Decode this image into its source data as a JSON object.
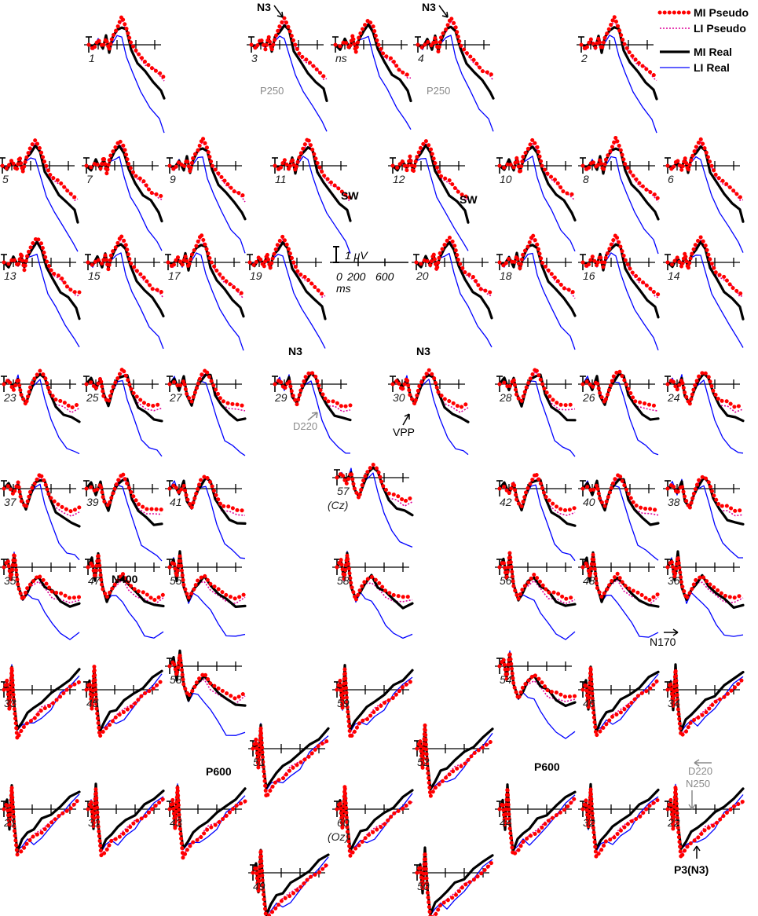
{
  "chart_data": {
    "type": "line",
    "series": [
      {
        "name": "MI Pseudo",
        "color": "#ff0000",
        "style": "dotted-heavy"
      },
      {
        "name": "LI Pseudo",
        "color": "#dd0099",
        "style": "dotted-thin"
      },
      {
        "name": "MI Real",
        "color": "#000000",
        "style": "solid-thick"
      },
      {
        "name": "LI Real",
        "color": "#0000ff",
        "style": "solid-thin"
      }
    ],
    "legend_placement": "top-right",
    "scale_bar": {
      "amplitude": "1 μV",
      "ticks": [
        "0",
        "200",
        "600"
      ],
      "unit": "ms"
    },
    "channels": [
      {
        "label": "1",
        "shape": "front"
      },
      {
        "label": "3",
        "shape": "front"
      },
      {
        "label": "ns",
        "shape": "front"
      },
      {
        "label": "4",
        "shape": "front"
      },
      {
        "label": "2",
        "shape": "front"
      },
      {
        "label": "5",
        "shape": "front"
      },
      {
        "label": "7",
        "shape": "front"
      },
      {
        "label": "9",
        "shape": "front"
      },
      {
        "label": "11",
        "shape": "front"
      },
      {
        "label": "12",
        "shape": "front"
      },
      {
        "label": "10",
        "shape": "front"
      },
      {
        "label": "8",
        "shape": "front"
      },
      {
        "label": "6",
        "shape": "front"
      },
      {
        "label": "13",
        "shape": "front"
      },
      {
        "label": "15",
        "shape": "front"
      },
      {
        "label": "17",
        "shape": "front"
      },
      {
        "label": "19",
        "shape": "front"
      },
      {
        "label": "20",
        "shape": "front"
      },
      {
        "label": "18",
        "shape": "front"
      },
      {
        "label": "16",
        "shape": "front"
      },
      {
        "label": "14",
        "shape": "front"
      },
      {
        "label": "23",
        "shape": "central"
      },
      {
        "label": "25",
        "shape": "central"
      },
      {
        "label": "27",
        "shape": "central"
      },
      {
        "label": "29",
        "shape": "central"
      },
      {
        "label": "30",
        "shape": "central"
      },
      {
        "label": "28",
        "shape": "central"
      },
      {
        "label": "26",
        "shape": "central"
      },
      {
        "label": "24",
        "shape": "central"
      },
      {
        "label": "37",
        "shape": "central"
      },
      {
        "label": "39",
        "shape": "central"
      },
      {
        "label": "41",
        "shape": "central"
      },
      {
        "label": "57",
        "sublabel": "(Cz)",
        "shape": "central"
      },
      {
        "label": "42",
        "shape": "central"
      },
      {
        "label": "40",
        "shape": "central"
      },
      {
        "label": "38",
        "shape": "central"
      },
      {
        "label": "35",
        "shape": "parietal"
      },
      {
        "label": "47",
        "shape": "parietal"
      },
      {
        "label": "55",
        "shape": "parietal"
      },
      {
        "label": "58",
        "shape": "parietal"
      },
      {
        "label": "56",
        "shape": "parietal"
      },
      {
        "label": "48",
        "shape": "parietal"
      },
      {
        "label": "36",
        "shape": "parietal"
      },
      {
        "label": "33",
        "shape": "occipital"
      },
      {
        "label": "45",
        "shape": "occipital"
      },
      {
        "label": "53",
        "shape": "parietal"
      },
      {
        "label": "59",
        "shape": "occipital"
      },
      {
        "label": "54",
        "shape": "parietal"
      },
      {
        "label": "46",
        "shape": "occipital"
      },
      {
        "label": "34",
        "shape": "occipital"
      },
      {
        "label": "51",
        "shape": "occipital"
      },
      {
        "label": "52",
        "shape": "occipital"
      },
      {
        "label": "21",
        "shape": "occipital"
      },
      {
        "label": "31",
        "shape": "occipital"
      },
      {
        "label": "43",
        "shape": "occipital"
      },
      {
        "label": "60",
        "sublabel": "(Oz)",
        "shape": "occipital"
      },
      {
        "label": "44",
        "shape": "occipital"
      },
      {
        "label": "32",
        "shape": "occipital"
      },
      {
        "label": "22",
        "shape": "occipital"
      },
      {
        "label": "49",
        "shape": "occipital"
      },
      {
        "label": "50",
        "shape": "occipital"
      }
    ],
    "annotations": [
      {
        "text": "N3",
        "style": "bold"
      },
      {
        "text": "N3",
        "style": "bold"
      },
      {
        "text": "P250",
        "style": "gray"
      },
      {
        "text": "P250",
        "style": "gray"
      },
      {
        "text": "SW",
        "style": "bold"
      },
      {
        "text": "SW",
        "style": "bold"
      },
      {
        "text": "N3",
        "style": "bold"
      },
      {
        "text": "N3",
        "style": "bold"
      },
      {
        "text": "D220",
        "style": "gray"
      },
      {
        "text": "VPP",
        "style": "plain"
      },
      {
        "text": "N400",
        "style": "bold"
      },
      {
        "text": "N170",
        "style": "plain"
      },
      {
        "text": "P600",
        "style": "bold"
      },
      {
        "text": "P600",
        "style": "bold"
      },
      {
        "text": "D220",
        "style": "gray"
      },
      {
        "text": "N250",
        "style": "gray"
      },
      {
        "text": "P3(N3)",
        "style": "bold"
      }
    ]
  }
}
